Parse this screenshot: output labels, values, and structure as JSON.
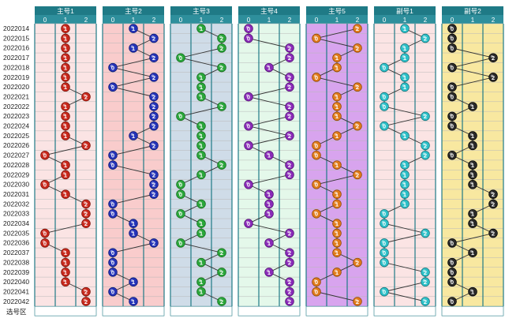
{
  "periods": [
    "2022014",
    "2022015",
    "2022016",
    "2022017",
    "2022018",
    "2022019",
    "2022020",
    "2022021",
    "2022022",
    "2022023",
    "2022024",
    "2022025",
    "2022026",
    "2022027",
    "2022028",
    "2022029",
    "2022030",
    "2022031",
    "2022032",
    "2022033",
    "2022034",
    "2022035",
    "2022036",
    "2022037",
    "2022038",
    "2022039",
    "2022040",
    "2022041",
    "2022042"
  ],
  "footer_label": "选号区",
  "col_headers": [
    "0",
    "1",
    "2"
  ],
  "panels": [
    {
      "title": "主号1",
      "bg": "#fbe4e4",
      "ball": "#c8281c",
      "ballRim": "#7a1208",
      "values": [
        1,
        1,
        1,
        1,
        1,
        1,
        1,
        2,
        1,
        1,
        1,
        1,
        2,
        0,
        1,
        1,
        0,
        1,
        2,
        2,
        2,
        0,
        0,
        1,
        1,
        1,
        1,
        2,
        2
      ]
    },
    {
      "title": "主号2",
      "bg": "#f9cccc",
      "ball": "#2433b8",
      "ballRim": "#101a70",
      "values": [
        1,
        2,
        1,
        2,
        0,
        2,
        0,
        2,
        2,
        2,
        2,
        1,
        2,
        0,
        0,
        2,
        2,
        2,
        0,
        0,
        1,
        1,
        2,
        0,
        0,
        0,
        1,
        0,
        1
      ]
    },
    {
      "title": "主号3",
      "bg": "#cfdce8",
      "ball": "#2aa63a",
      "ballRim": "#136a1c",
      "values": [
        1,
        2,
        2,
        0,
        2,
        1,
        1,
        1,
        2,
        0,
        1,
        1,
        1,
        1,
        2,
        1,
        0,
        0,
        1,
        0,
        1,
        1,
        0,
        2,
        1,
        2,
        1,
        1,
        2
      ]
    },
    {
      "title": "主号4",
      "bg": "#e4f8ea",
      "ball": "#8a2ab8",
      "ballRim": "#501470",
      "values": [
        0,
        0,
        2,
        2,
        1,
        2,
        2,
        0,
        2,
        2,
        0,
        2,
        0,
        1,
        2,
        2,
        0,
        1,
        1,
        1,
        0,
        2,
        1,
        2,
        2,
        1,
        2,
        2,
        2
      ]
    },
    {
      "title": "主号5",
      "bg": "#d8a4ee",
      "ball": "#e07b1a",
      "ballRim": "#8a4508",
      "values": [
        2,
        0,
        2,
        1,
        1,
        0,
        2,
        1,
        1,
        1,
        2,
        1,
        0,
        0,
        1,
        2,
        0,
        1,
        1,
        0,
        1,
        1,
        1,
        1,
        2,
        1,
        0,
        0,
        2
      ]
    },
    {
      "title": "副号1",
      "bg": "#fbe4e4",
      "ball": "#2cc0c8",
      "ballRim": "#137078",
      "values": [
        1,
        2,
        1,
        1,
        0,
        1,
        1,
        0,
        0,
        2,
        0,
        1,
        2,
        2,
        1,
        1,
        1,
        1,
        1,
        0,
        0,
        2,
        0,
        0,
        0,
        2,
        2,
        0,
        2
      ]
    },
    {
      "title": "副号2",
      "bg": "#f8e8a0",
      "ball": "#2a2a2a",
      "ballRim": "#000000",
      "values": [
        0,
        0,
        0,
        2,
        0,
        2,
        0,
        0,
        1,
        0,
        0,
        1,
        1,
        0,
        1,
        1,
        1,
        2,
        2,
        1,
        1,
        2,
        0,
        1,
        0,
        0,
        0,
        1,
        0
      ]
    }
  ],
  "chart_data": {
    "type": "table",
    "title": "",
    "xlabel": "",
    "ylabel": "",
    "columns": [
      "主号1",
      "主号2",
      "主号3",
      "主号4",
      "主号5",
      "副号1",
      "副号2"
    ],
    "categories": [
      "2022014",
      "2022015",
      "2022016",
      "2022017",
      "2022018",
      "2022019",
      "2022020",
      "2022021",
      "2022022",
      "2022023",
      "2022024",
      "2022025",
      "2022026",
      "2022027",
      "2022028",
      "2022029",
      "2022030",
      "2022031",
      "2022032",
      "2022033",
      "2022034",
      "2022035",
      "2022036",
      "2022037",
      "2022038",
      "2022039",
      "2022040",
      "2022041",
      "2022042"
    ],
    "series": [
      {
        "name": "主号1",
        "values": [
          1,
          1,
          1,
          1,
          1,
          1,
          1,
          2,
          1,
          1,
          1,
          1,
          2,
          0,
          1,
          1,
          0,
          1,
          2,
          2,
          2,
          0,
          0,
          1,
          1,
          1,
          1,
          2,
          2
        ]
      },
      {
        "name": "主号2",
        "values": [
          1,
          2,
          1,
          2,
          0,
          2,
          0,
          2,
          2,
          2,
          2,
          1,
          2,
          0,
          0,
          2,
          2,
          2,
          0,
          0,
          1,
          1,
          2,
          0,
          0,
          0,
          1,
          0,
          1
        ]
      },
      {
        "name": "主号3",
        "values": [
          1,
          2,
          2,
          0,
          2,
          1,
          1,
          1,
          2,
          0,
          1,
          1,
          1,
          1,
          2,
          1,
          0,
          0,
          1,
          0,
          1,
          1,
          0,
          2,
          1,
          2,
          1,
          1,
          2
        ]
      },
      {
        "name": "主号4",
        "values": [
          0,
          0,
          2,
          2,
          1,
          2,
          2,
          0,
          2,
          2,
          0,
          2,
          0,
          1,
          2,
          2,
          0,
          1,
          1,
          1,
          0,
          2,
          1,
          2,
          2,
          1,
          2,
          2,
          2
        ]
      },
      {
        "name": "主号5",
        "values": [
          2,
          0,
          2,
          1,
          1,
          0,
          2,
          1,
          1,
          1,
          2,
          1,
          0,
          0,
          1,
          2,
          0,
          1,
          1,
          0,
          1,
          1,
          1,
          1,
          2,
          1,
          0,
          0,
          2
        ]
      },
      {
        "name": "副号1",
        "values": [
          1,
          2,
          1,
          1,
          0,
          1,
          1,
          0,
          0,
          2,
          0,
          1,
          2,
          2,
          1,
          1,
          1,
          1,
          1,
          0,
          0,
          2,
          0,
          0,
          0,
          2,
          2,
          0,
          2
        ]
      },
      {
        "name": "副号2",
        "values": [
          0,
          0,
          0,
          2,
          0,
          2,
          0,
          0,
          1,
          0,
          0,
          1,
          1,
          0,
          1,
          1,
          1,
          2,
          2,
          1,
          1,
          2,
          0,
          1,
          0,
          0,
          0,
          1,
          0
        ]
      }
    ],
    "value_range": [
      0,
      2
    ]
  }
}
